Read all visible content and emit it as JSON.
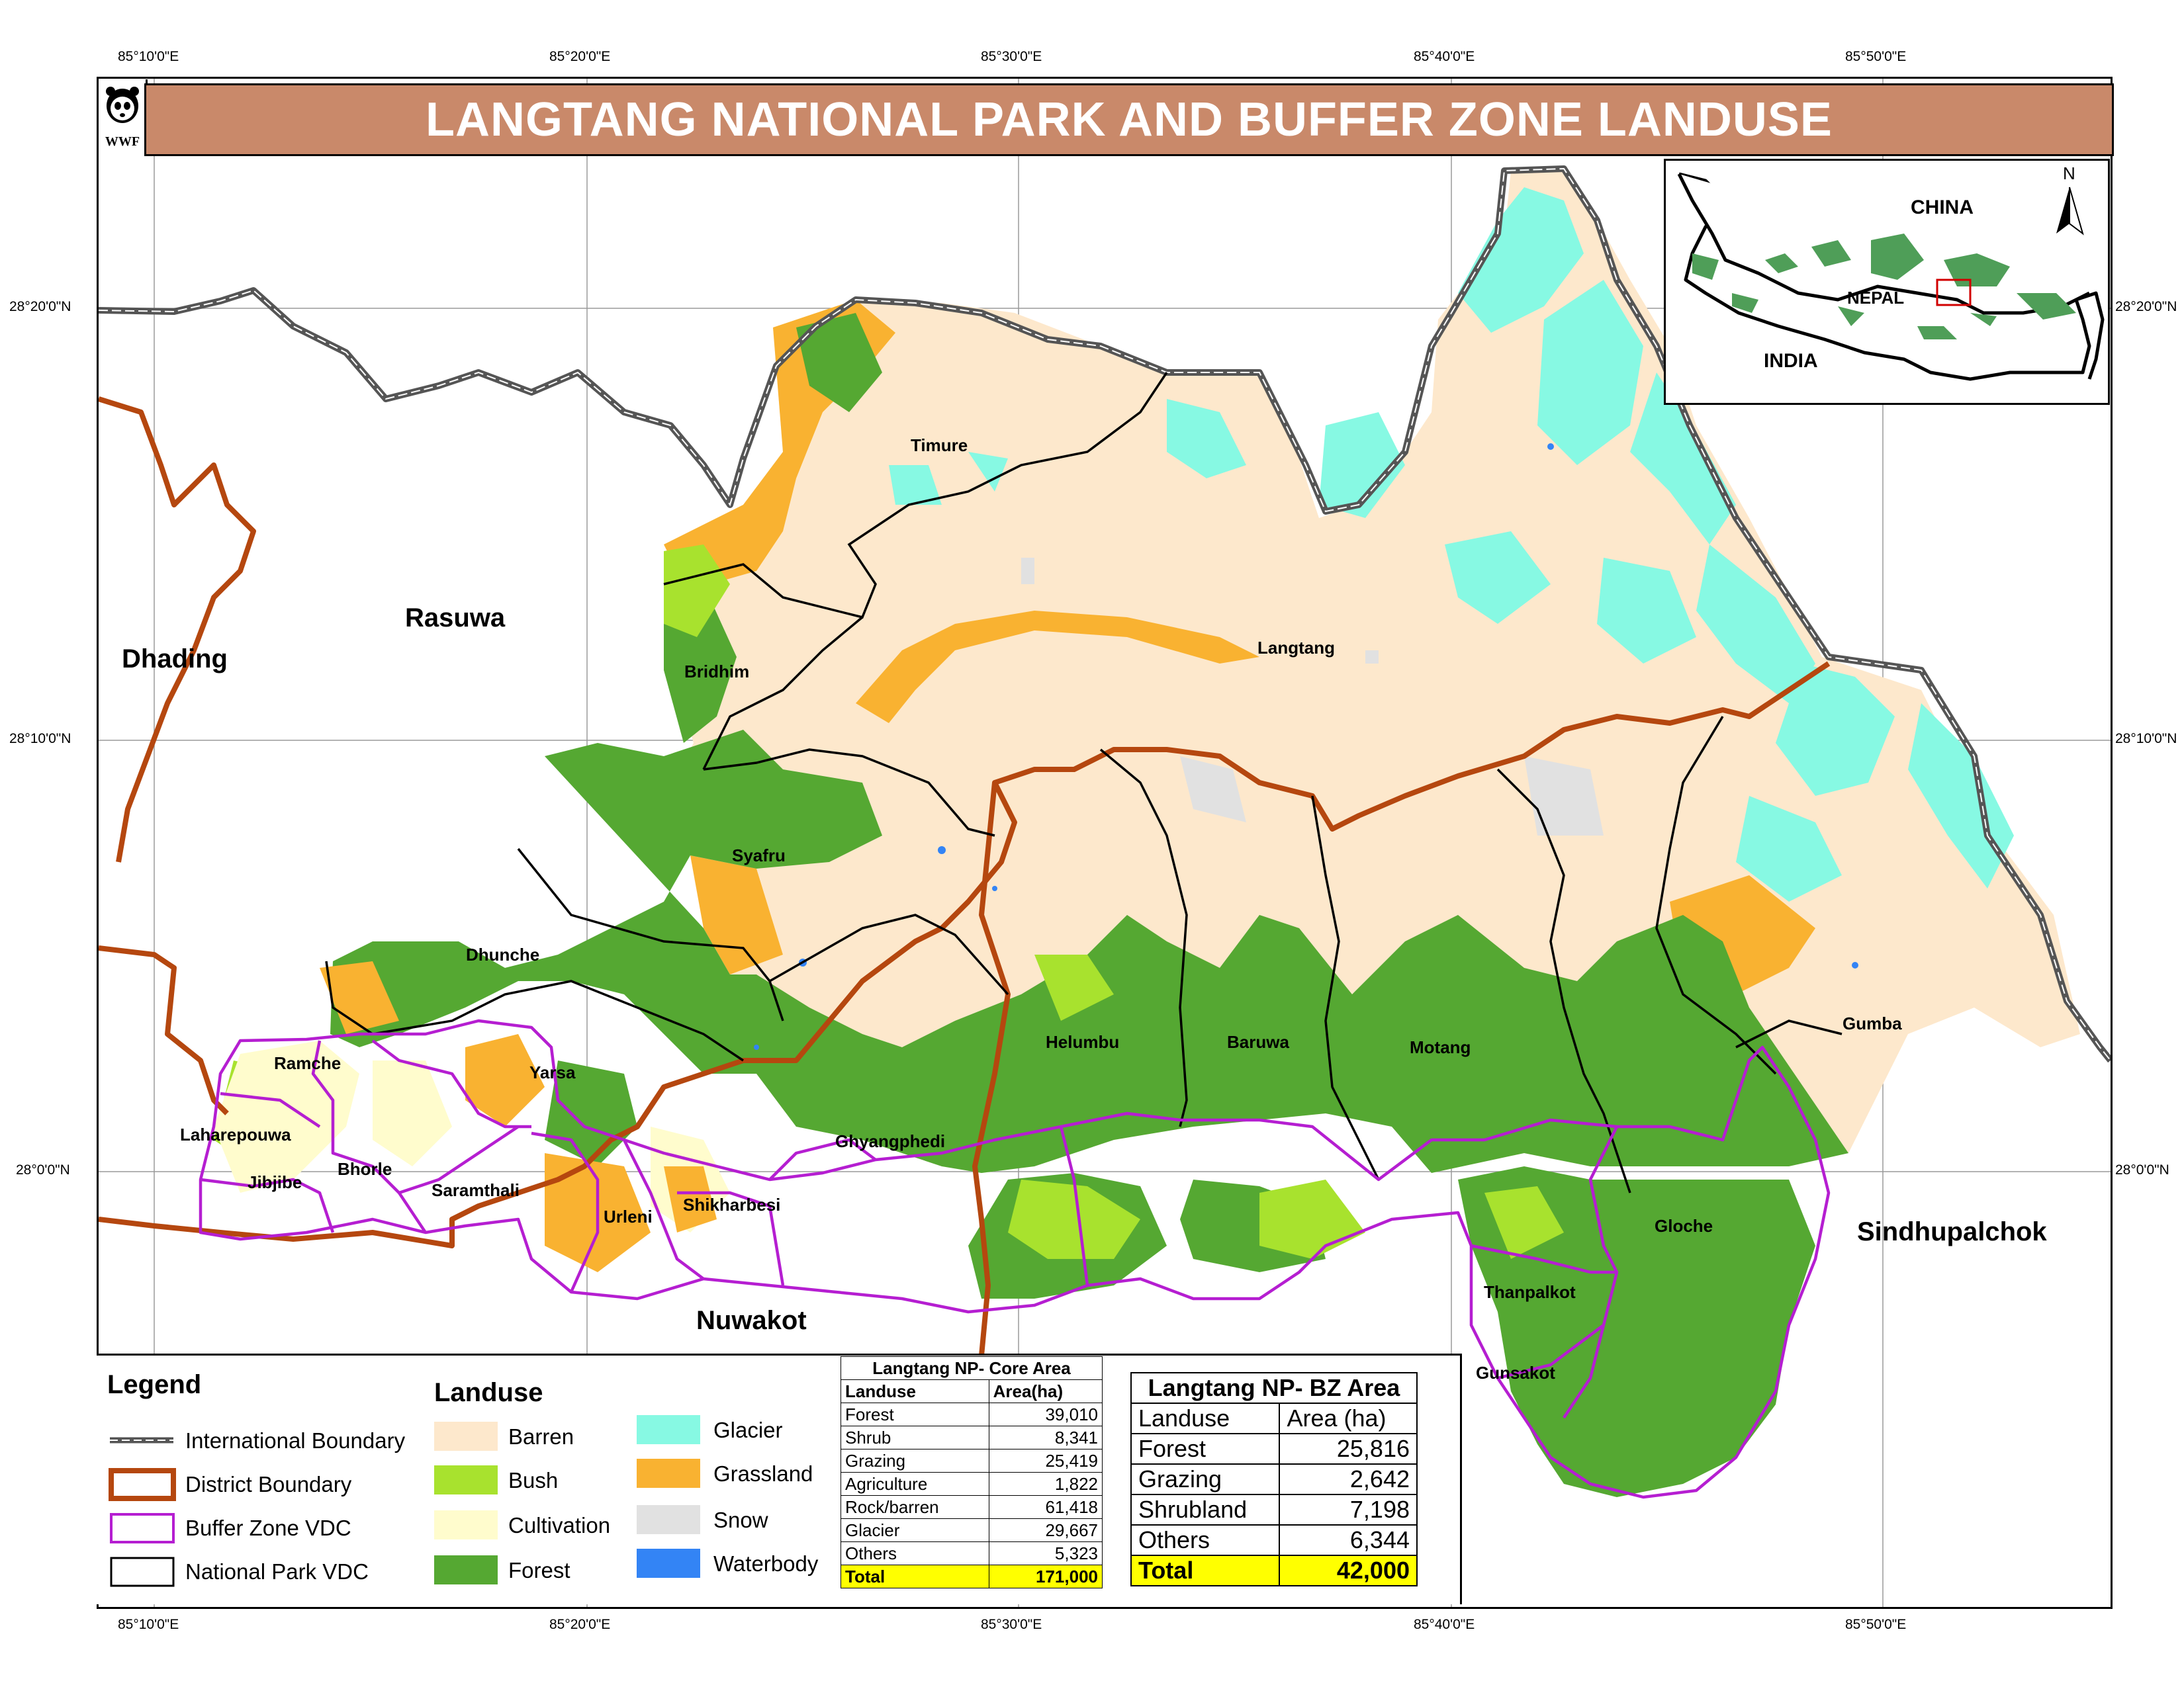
{
  "title": "LANGTANG NATIONAL PARK AND BUFFER ZONE LANDUSE",
  "logo_text": "WWF",
  "coords": {
    "top": [
      "85°10'0\"E",
      "85°20'0\"E",
      "85°30'0\"E",
      "85°40'0\"E",
      "85°50'0\"E"
    ],
    "bottom": [
      "85°10'0\"E",
      "85°20'0\"E",
      "85°30'0\"E",
      "85°40'0\"E",
      "85°50'0\"E"
    ],
    "left": [
      "28°20'0\"N",
      "28°10'0\"N",
      "28°0'0\"N"
    ],
    "right": [
      "28°20'0\"N",
      "28°10'0\"N",
      "28°0'0\"N"
    ]
  },
  "districts": [
    "Dhading",
    "Rasuwa",
    "Nuwakot",
    "Sindhupalchok"
  ],
  "vdcs": [
    "Timure",
    "Bridhim",
    "Langtang",
    "Syafru",
    "Dhunche",
    "Ramche",
    "Yarsa",
    "Laharepouwa",
    "Jibjibe",
    "Bhorle",
    "Saramthali",
    "Urleni",
    "Shikharbesi",
    "Ghyangphedi",
    "Helumbu",
    "Baruwa",
    "Motang",
    "Gumba",
    "Gloche",
    "Thanpalkot",
    "Gunsakot"
  ],
  "inset": {
    "china": "CHINA",
    "nepal": "NEPAL",
    "india": "INDIA",
    "north": "N"
  },
  "legend": {
    "title": "Legend",
    "boundaries": [
      "International Boundary",
      "District Boundary",
      "Buffer Zone VDC",
      "National Park VDC"
    ],
    "landuse_title": "Landuse",
    "landuse": [
      {
        "label": "Barren",
        "color": "#fde8cc"
      },
      {
        "label": "Bush",
        "color": "#a8e22e"
      },
      {
        "label": "Cultivation",
        "color": "#fffccd"
      },
      {
        "label": "Forest",
        "color": "#55a832"
      },
      {
        "label": "Glacier",
        "color": "#87f9e3"
      },
      {
        "label": "Grassland",
        "color": "#f9b231"
      },
      {
        "label": "Snow",
        "color": "#e1e1e1"
      },
      {
        "label": "Waterbody",
        "color": "#3384f5"
      }
    ]
  },
  "core_table": {
    "title": "Langtang NP- Core Area",
    "headers": [
      "Landuse",
      "Area(ha)"
    ],
    "rows": [
      [
        "Forest",
        "39,010"
      ],
      [
        "Shrub",
        "8,341"
      ],
      [
        "Grazing",
        "25,419"
      ],
      [
        "Agriculture",
        "1,822"
      ],
      [
        "Rock/barren",
        "61,418"
      ],
      [
        "Glacier",
        "29,667"
      ],
      [
        "Others",
        "5,323"
      ]
    ],
    "total": [
      "Total",
      "171,000"
    ]
  },
  "bz_table": {
    "title": "Langtang NP- BZ Area",
    "headers": [
      "Landuse",
      "Area (ha)"
    ],
    "rows": [
      [
        "Forest",
        "25,816"
      ],
      [
        "Grazing",
        "2,642"
      ],
      [
        "Shrubland",
        "7,198"
      ],
      [
        "Others",
        "6,344"
      ]
    ],
    "total": [
      "Total",
      "42,000"
    ]
  },
  "colors": {
    "barren": "#fde8cc",
    "bush": "#a8e22e",
    "cultivation": "#fffccd",
    "forest": "#55a832",
    "glacier": "#87f9e3",
    "grassland": "#f9b231",
    "snow": "#e1e1e1",
    "water": "#3384f5",
    "district": "#b5470f",
    "buffer": "#b51ed1",
    "title_bg": "#c9896a"
  }
}
